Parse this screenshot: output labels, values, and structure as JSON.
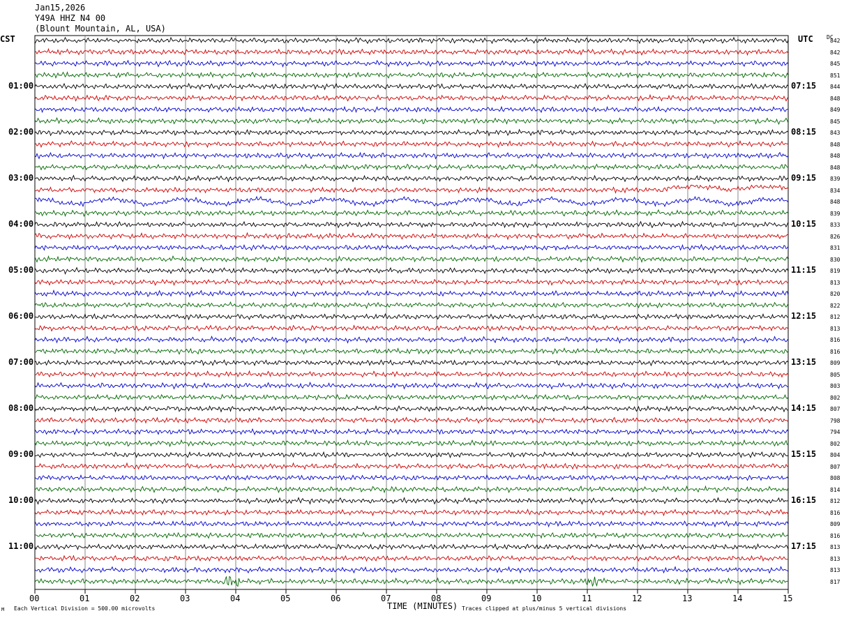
{
  "header": {
    "date": "Jan15,2026",
    "station": "Y49A HHZ N4 00",
    "location": "(Blount Mountain, AL, USA)"
  },
  "left_zone": "CST",
  "right_zone": "UTC",
  "dc_label": "DC",
  "left_times": [
    "01:00",
    "02:00",
    "03:00",
    "04:00",
    "05:00",
    "06:00",
    "07:00",
    "08:00",
    "09:00",
    "10:00",
    "11:00"
  ],
  "right_times": [
    "07:15",
    "08:15",
    "09:15",
    "10:15",
    "11:15",
    "12:15",
    "13:15",
    "14:15",
    "15:15",
    "16:15",
    "17:15"
  ],
  "dc_values": [
    "842",
    "842",
    "845",
    "851",
    "844",
    "848",
    "849",
    "845",
    "843",
    "848",
    "848",
    "848",
    "839",
    "834",
    "848",
    "839",
    "833",
    "826",
    "831",
    "830",
    "819",
    "813",
    "820",
    "822",
    "812",
    "813",
    "816",
    "816",
    "809",
    "805",
    "803",
    "802",
    "807",
    "798",
    "794",
    "802",
    "804",
    "807",
    "808",
    "814",
    "812",
    "816",
    "809",
    "816",
    "813",
    "813",
    "813",
    "817"
  ],
  "trace_colors": [
    "#000000",
    "#cc0000",
    "#0000cc",
    "#006600"
  ],
  "x_ticks": [
    "00",
    "01",
    "02",
    "03",
    "04",
    "05",
    "06",
    "07",
    "08",
    "09",
    "10",
    "11",
    "12",
    "13",
    "14",
    "15"
  ],
  "x_axis_label": "TIME (MINUTES)",
  "footer_left": "Each Vertical Division =  500.00 microvolts",
  "footer_right": "Traces clipped at plus/minus 5 vertical divisions",
  "footer_mark": "M"
}
